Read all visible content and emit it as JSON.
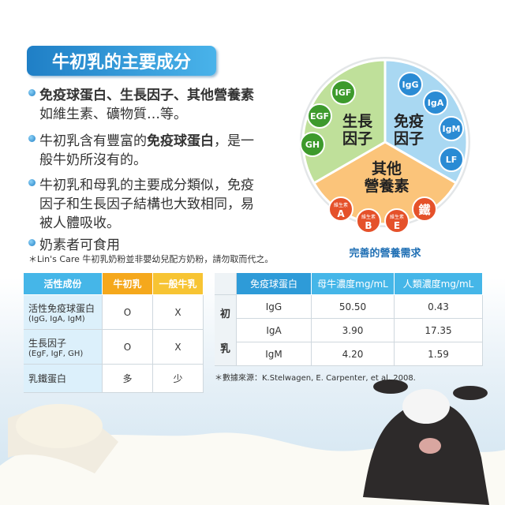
{
  "header": {
    "title": "牛初乳的主要成分"
  },
  "bullets": [
    {
      "lines": [
        [
          {
            "text": "免疫球蛋白、生長因子、其他營養素",
            "bold": true
          }
        ],
        [
          {
            "text": "如維生素、礦物質…等。"
          }
        ]
      ]
    },
    {
      "lines": [
        [
          {
            "text": "牛初乳含有豐富的"
          },
          {
            "text": "免疫球蛋白",
            "bold": true
          },
          {
            "text": "，是一"
          }
        ],
        [
          {
            "text": "般牛奶所沒有的。"
          }
        ]
      ]
    },
    {
      "lines": [
        [
          {
            "text": "牛初乳和母乳的主要成分類似，免疫"
          }
        ],
        [
          {
            "text": "因子和生長因子結構也大致相同，易"
          }
        ],
        [
          {
            "text": "被人體吸收。"
          }
        ]
      ]
    },
    {
      "lines": [
        [
          {
            "text": "奶素者可食用"
          }
        ]
      ]
    }
  ],
  "note": "＊Lin's Care 牛初乳奶粉並非嬰幼兒配方奶粉，請勿取而代之。",
  "nutrition_wheel": {
    "sectors": [
      {
        "title": [
          "生長",
          "因子"
        ],
        "items": [
          {
            "label": "IGF"
          },
          {
            "label": "EGF"
          },
          {
            "label": "GH"
          }
        ]
      },
      {
        "title": [
          "免疫",
          "因子"
        ],
        "items": [
          {
            "label": "IgG"
          },
          {
            "label": "IgA"
          },
          {
            "label": "IgM"
          },
          {
            "label": "LF"
          }
        ]
      },
      {
        "title": [
          "其他",
          "營養素"
        ],
        "items": [
          {
            "label": "維生素",
            "letter": "A"
          },
          {
            "label": "維生素",
            "letter": "B"
          },
          {
            "label": "維生素",
            "letter": "E"
          },
          {
            "label": "鐵"
          }
        ]
      }
    ],
    "caption": "完善的營養需求"
  },
  "table_1": {
    "headers": [
      "活性成份",
      "牛初乳",
      "一般牛乳"
    ],
    "rows": [
      {
        "name": "活性免疫球蛋白",
        "detail": "(IgG, IgA, IgM)",
        "cells": [
          "O",
          "X"
        ]
      },
      {
        "name": "生長因子",
        "detail": "(EgF, IgF, GH)",
        "cells": [
          "O",
          "X"
        ]
      },
      {
        "name": "乳鐵蛋白",
        "cells": [
          "多",
          "少"
        ]
      }
    ]
  },
  "table_2": {
    "group_label": [
      "初",
      "乳"
    ],
    "headers": [
      "免疫球蛋白",
      "母牛濃度mg/mL",
      "人類濃度mg/mL"
    ],
    "rows": [
      [
        "IgG",
        "50.50",
        "0.43"
      ],
      [
        "IgA",
        "3.90",
        "17.35"
      ],
      [
        "IgM",
        "4.20",
        "1.59"
      ]
    ],
    "source": "＊數據來源：K.Stelwagen, E. Carpenter, et al. 2008."
  }
}
